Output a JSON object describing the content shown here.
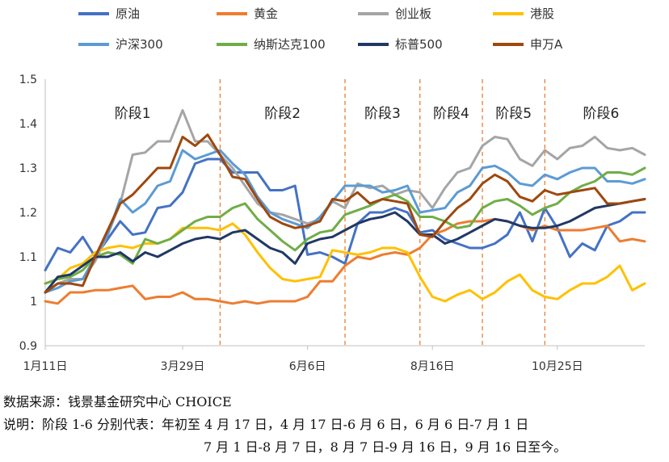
{
  "chart_data": {
    "type": "line",
    "title": "",
    "xlabel": "",
    "ylabel": "",
    "ylim": [
      0.9,
      1.5
    ],
    "yticks": [
      "0.9",
      "1",
      "1.1",
      "1.2",
      "1.3",
      "1.4",
      "1.5"
    ],
    "xticks": [
      {
        "label": "1月11日",
        "index": 0
      },
      {
        "label": "3月29日",
        "index": 11
      },
      {
        "label": "6月6日",
        "index": 21
      },
      {
        "label": "8月16日",
        "index": 31
      },
      {
        "label": "10月25日",
        "index": 41
      }
    ],
    "grid": false,
    "legend_position": "top",
    "stage_boundaries": [
      14,
      24,
      30,
      35,
      40
    ],
    "stages": [
      {
        "label": "阶段1",
        "index": 7
      },
      {
        "label": "阶段2",
        "index": 19
      },
      {
        "label": "阶段3",
        "index": 27
      },
      {
        "label": "阶段4",
        "index": 32.5
      },
      {
        "label": "阶段5",
        "index": 37.5
      },
      {
        "label": "阶段6",
        "index": 44.5
      }
    ],
    "series": [
      {
        "name": "原油",
        "color": "#4472C4",
        "values": [
          1.07,
          1.12,
          1.11,
          1.145,
          1.1,
          1.14,
          1.18,
          1.15,
          1.155,
          1.21,
          1.215,
          1.245,
          1.31,
          1.32,
          1.32,
          1.29,
          1.29,
          1.29,
          1.25,
          1.25,
          1.26,
          1.105,
          1.11,
          1.1,
          1.085,
          1.175,
          1.2,
          1.2,
          1.21,
          1.2,
          1.155,
          1.16,
          1.14,
          1.13,
          1.12,
          1.12,
          1.13,
          1.15,
          1.2,
          1.135,
          1.21,
          1.165,
          1.1,
          1.13,
          1.115,
          1.17,
          1.18,
          1.2,
          1.2
        ]
      },
      {
        "name": "黄金",
        "color": "#ED7D31",
        "values": [
          1.0,
          0.995,
          1.02,
          1.02,
          1.025,
          1.025,
          1.03,
          1.035,
          1.005,
          1.01,
          1.01,
          1.02,
          1.005,
          1.005,
          1.0,
          0.995,
          1.0,
          0.995,
          1.0,
          1.0,
          1.0,
          1.01,
          1.045,
          1.045,
          1.08,
          1.1,
          1.095,
          1.105,
          1.11,
          1.105,
          1.12,
          1.15,
          1.16,
          1.175,
          1.18,
          1.18,
          1.185,
          1.18,
          1.17,
          1.16,
          1.17,
          1.16,
          1.16,
          1.16,
          1.165,
          1.17,
          1.135,
          1.14,
          1.135
        ]
      },
      {
        "name": "创业板",
        "color": "#A5A5A5",
        "values": [
          1.02,
          1.04,
          1.05,
          1.05,
          1.09,
          1.15,
          1.22,
          1.33,
          1.335,
          1.36,
          1.36,
          1.43,
          1.36,
          1.36,
          1.33,
          1.3,
          1.26,
          1.22,
          1.2,
          1.195,
          1.185,
          1.175,
          1.185,
          1.225,
          1.21,
          1.265,
          1.255,
          1.26,
          1.24,
          1.25,
          1.245,
          1.21,
          1.255,
          1.29,
          1.3,
          1.35,
          1.37,
          1.365,
          1.32,
          1.305,
          1.34,
          1.32,
          1.345,
          1.35,
          1.37,
          1.345,
          1.34,
          1.345,
          1.33
        ]
      },
      {
        "name": "港股",
        "color": "#FFC000",
        "values": [
          1.04,
          1.05,
          1.075,
          1.085,
          1.11,
          1.12,
          1.125,
          1.12,
          1.13,
          1.13,
          1.14,
          1.165,
          1.165,
          1.165,
          1.16,
          1.175,
          1.15,
          1.11,
          1.075,
          1.05,
          1.045,
          1.05,
          1.055,
          1.115,
          1.11,
          1.105,
          1.11,
          1.12,
          1.12,
          1.11,
          1.055,
          1.01,
          1.0,
          1.015,
          1.025,
          1.005,
          1.02,
          1.045,
          1.06,
          1.025,
          1.01,
          1.005,
          1.025,
          1.04,
          1.04,
          1.055,
          1.08,
          1.025,
          1.04
        ]
      },
      {
        "name": "沪深300",
        "color": "#5B9BD5",
        "values": [
          1.02,
          1.03,
          1.045,
          1.05,
          1.1,
          1.15,
          1.23,
          1.2,
          1.22,
          1.26,
          1.27,
          1.34,
          1.32,
          1.33,
          1.34,
          1.31,
          1.285,
          1.235,
          1.2,
          1.185,
          1.175,
          1.165,
          1.19,
          1.225,
          1.26,
          1.26,
          1.26,
          1.245,
          1.25,
          1.26,
          1.2,
          1.205,
          1.21,
          1.245,
          1.26,
          1.3,
          1.305,
          1.29,
          1.265,
          1.26,
          1.285,
          1.275,
          1.29,
          1.3,
          1.3,
          1.27,
          1.27,
          1.265,
          1.275
        ]
      },
      {
        "name": "纳斯达克100",
        "color": "#70AD47",
        "values": [
          1.04,
          1.05,
          1.055,
          1.07,
          1.1,
          1.11,
          1.105,
          1.085,
          1.14,
          1.13,
          1.14,
          1.16,
          1.18,
          1.19,
          1.19,
          1.21,
          1.22,
          1.185,
          1.16,
          1.135,
          1.115,
          1.14,
          1.155,
          1.16,
          1.195,
          1.205,
          1.215,
          1.23,
          1.24,
          1.225,
          1.19,
          1.19,
          1.18,
          1.165,
          1.17,
          1.21,
          1.225,
          1.23,
          1.215,
          1.195,
          1.21,
          1.22,
          1.245,
          1.26,
          1.27,
          1.29,
          1.29,
          1.285,
          1.3
        ]
      },
      {
        "name": "标普500",
        "color": "#203864",
        "values": [
          1.02,
          1.055,
          1.06,
          1.08,
          1.1,
          1.1,
          1.11,
          1.09,
          1.11,
          1.1,
          1.115,
          1.13,
          1.14,
          1.145,
          1.14,
          1.155,
          1.16,
          1.14,
          1.12,
          1.11,
          1.085,
          1.13,
          1.14,
          1.145,
          1.16,
          1.175,
          1.185,
          1.19,
          1.2,
          1.18,
          1.15,
          1.15,
          1.13,
          1.14,
          1.155,
          1.17,
          1.185,
          1.18,
          1.17,
          1.165,
          1.165,
          1.17,
          1.18,
          1.195,
          1.21,
          1.215,
          1.22,
          1.225,
          1.23
        ]
      },
      {
        "name": "申万A",
        "color": "#9E480E",
        "values": [
          1.02,
          1.04,
          1.04,
          1.035,
          1.1,
          1.16,
          1.22,
          1.24,
          1.27,
          1.3,
          1.3,
          1.37,
          1.35,
          1.375,
          1.33,
          1.28,
          1.275,
          1.23,
          1.19,
          1.175,
          1.165,
          1.17,
          1.18,
          1.23,
          1.225,
          1.245,
          1.22,
          1.23,
          1.225,
          1.22,
          1.15,
          1.145,
          1.18,
          1.21,
          1.23,
          1.265,
          1.285,
          1.27,
          1.235,
          1.225,
          1.25,
          1.24,
          1.245,
          1.25,
          1.255,
          1.22,
          1.22,
          1.225,
          1.23
        ]
      }
    ]
  },
  "footnotes": {
    "source": "数据来源：钱景基金研究中心 CHOICE",
    "note_line1": "说明：阶段 1-6 分别代表：年初至 4 月 17 日，4 月 17 日-6 月 6 日，6 月 6 日-7 月 1 日",
    "note_line2": "7 月 1 日-8 月 7 日，8 月 7 日-9 月 16 日，9 月 16 日至今。"
  }
}
